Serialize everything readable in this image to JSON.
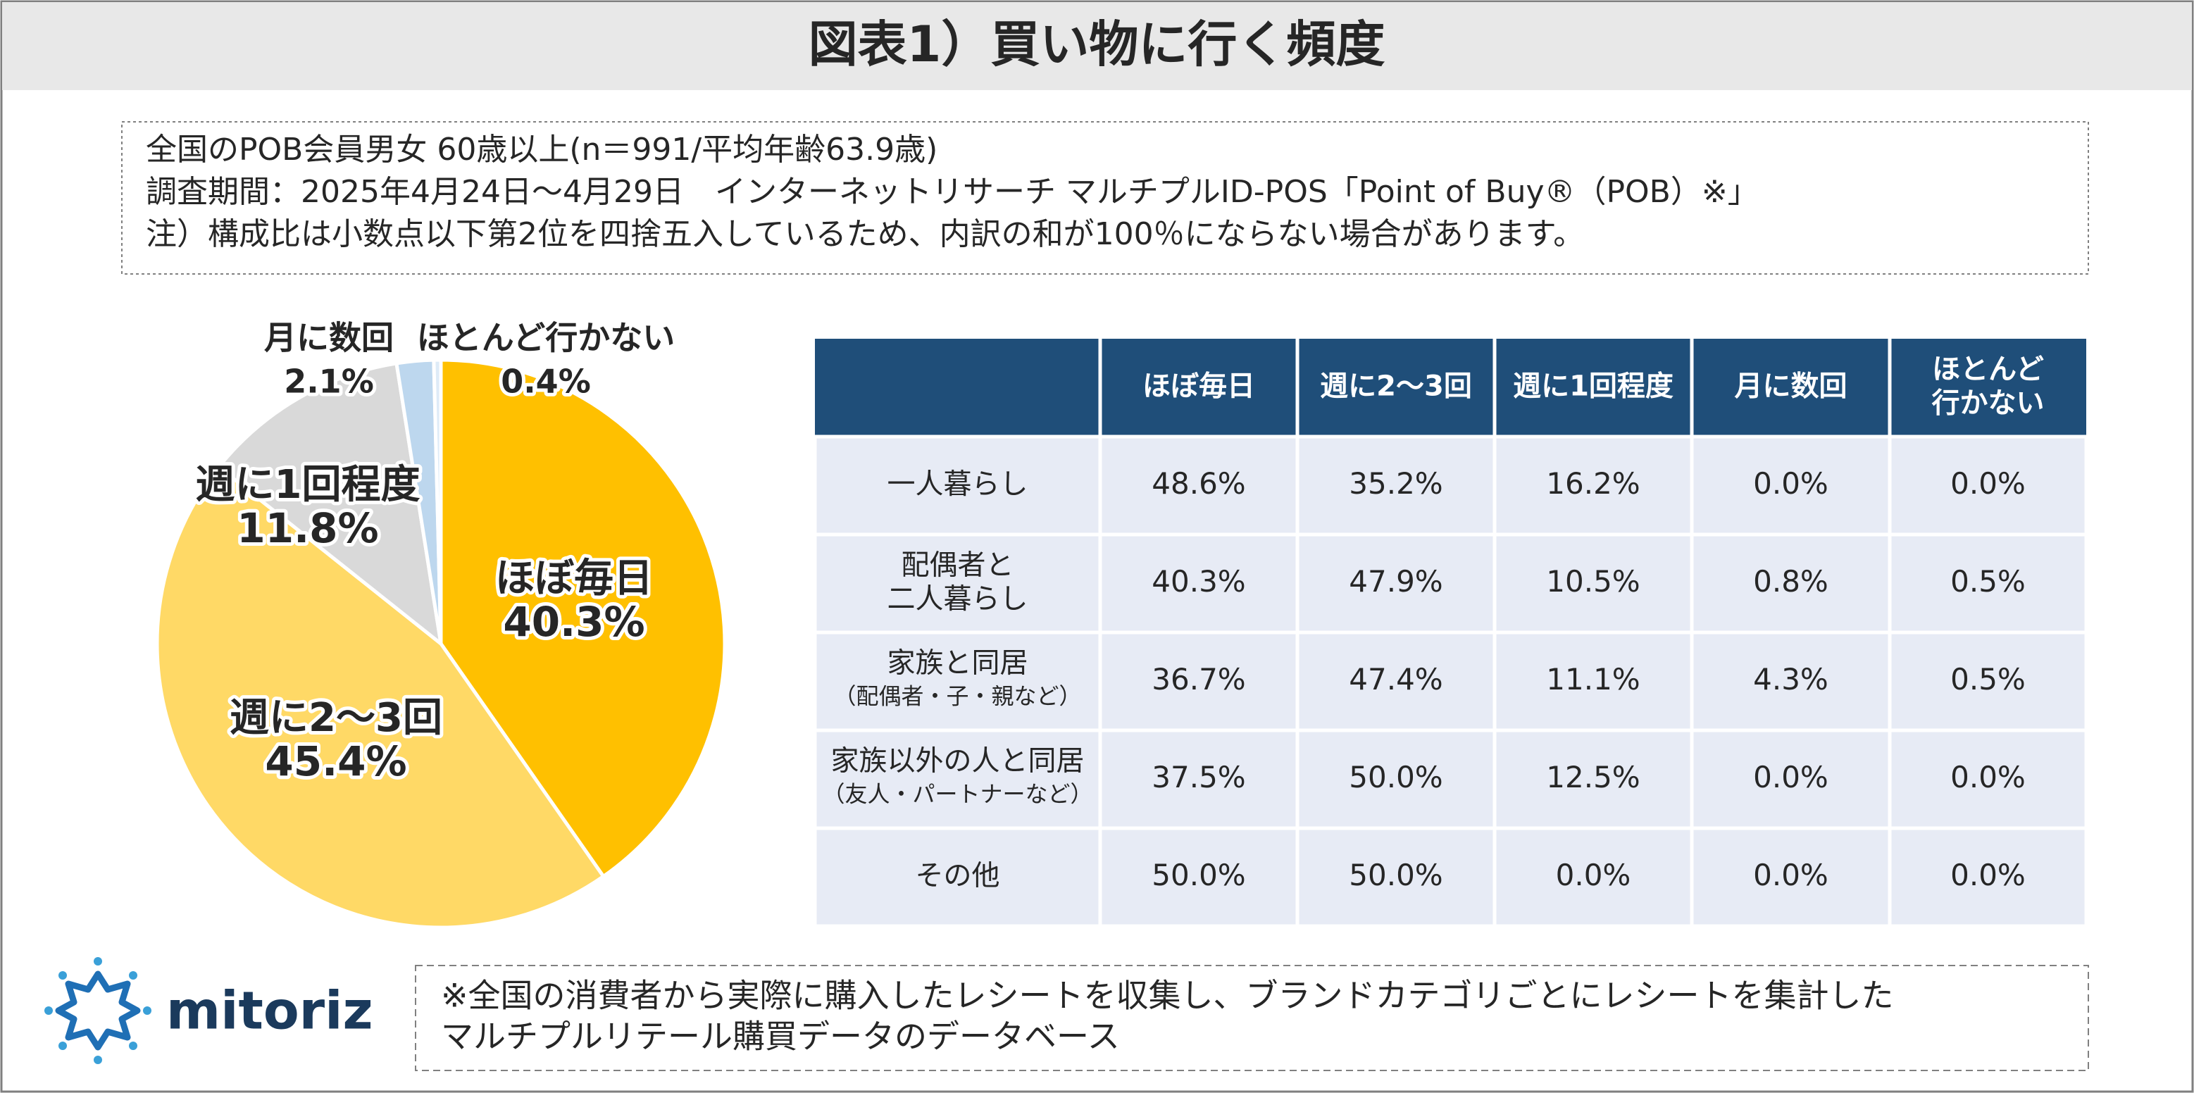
{
  "header": {
    "title": "図表1）買い物に行く頻度"
  },
  "notes": [
    "全国のPOB会員男女 60歳以上(n＝991/平均年齢63.9歳)",
    "調査期間：2025年4月24日〜4月29日　インターネットリサーチ マルチプルID-POS「Point of Buy®（POB）※」",
    "注）構成比は小数点以下第2位を四捨五入しているため、内訳の和が100％にならない場合があります。"
  ],
  "chart_data": {
    "type": "pie",
    "categories": [
      "ほぼ毎日",
      "週に2〜3回",
      "週に1回程度",
      "月に数回",
      "ほとんど行かない"
    ],
    "values": [
      40.3,
      45.4,
      11.8,
      2.1,
      0.4
    ],
    "value_labels": [
      "40.3%",
      "45.4%",
      "11.8%",
      "2.1%",
      "0.4%"
    ],
    "colors": [
      "#ffc000",
      "#ffd966",
      "#d9d9d9",
      "#bdd7ee",
      "#deebf7"
    ]
  },
  "table": {
    "columns": [
      [
        "ほぼ毎日"
      ],
      [
        "週に2〜3回"
      ],
      [
        "週に1回程度"
      ],
      [
        "月に数回"
      ],
      [
        "ほとんど",
        "行かない"
      ]
    ],
    "rows": [
      {
        "label": [
          "一人暮らし"
        ],
        "cells": [
          "48.6%",
          "35.2%",
          "16.2%",
          "0.0%",
          "0.0%"
        ]
      },
      {
        "label": [
          "配偶者と",
          "二人暮らし"
        ],
        "cells": [
          "40.3%",
          "47.9%",
          "10.5%",
          "0.8%",
          "0.5%"
        ]
      },
      {
        "label": [
          "家族と同居"
        ],
        "sublabel": "（配偶者・子・親など）",
        "cells": [
          "36.7%",
          "47.4%",
          "11.1%",
          "4.3%",
          "0.5%"
        ]
      },
      {
        "label": [
          "家族以外の人と同居"
        ],
        "sublabel": "（友人・パートナーなど）",
        "cells": [
          "37.5%",
          "50.0%",
          "12.5%",
          "0.0%",
          "0.0%"
        ]
      },
      {
        "label": [
          "その他"
        ],
        "cells": [
          "50.0%",
          "50.0%",
          "0.0%",
          "0.0%",
          "0.0%"
        ]
      }
    ]
  },
  "footer": {
    "logo": "mitoriz",
    "note": [
      "※全国の消費者から実際に購入したレシートを収集し、ブランドカテゴリごとにレシートを集計した",
      "マルチプルリテール購買データのデータベース"
    ]
  }
}
